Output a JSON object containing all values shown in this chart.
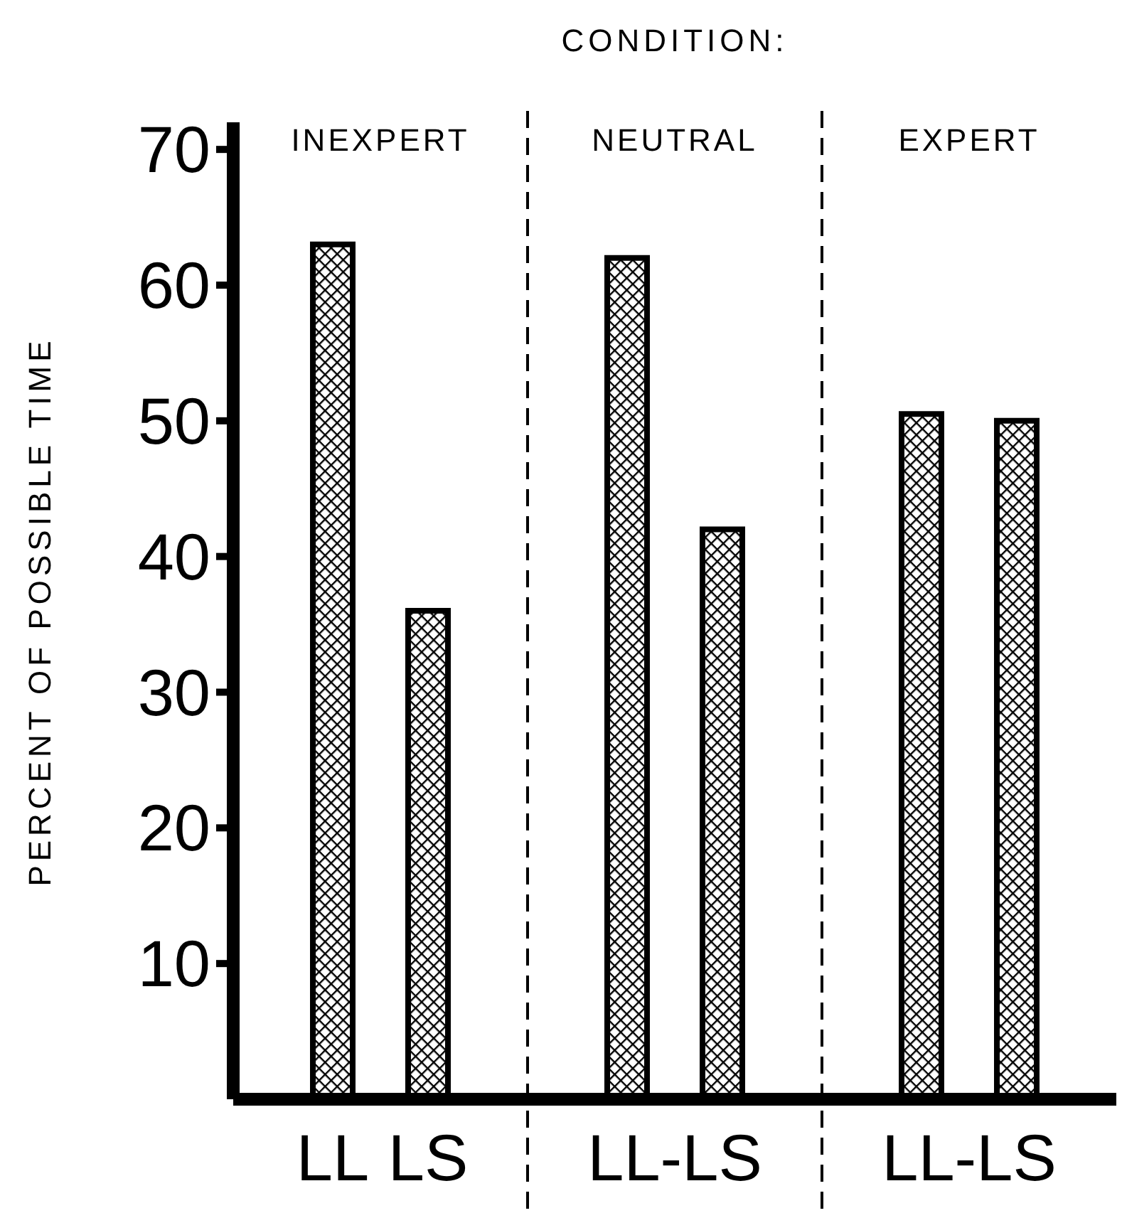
{
  "chart_data": {
    "type": "bar",
    "title": "CONDITION:",
    "ylabel": "PERCENT OF POSSIBLE TIME",
    "categories": [
      "INEXPERT",
      "NEUTRAL",
      "EXPERT"
    ],
    "series": [
      {
        "name": "LL",
        "color": "#000000",
        "values": [
          63,
          62,
          50.5
        ]
      },
      {
        "name": "LS",
        "color": "#000000",
        "values": [
          36,
          42,
          50
        ]
      }
    ],
    "ylim": [
      0,
      72
    ],
    "yticks": [
      10,
      20,
      30,
      40,
      50,
      60,
      70
    ],
    "annotations": [
      "LL-LS",
      "LL-LS"
    ]
  }
}
